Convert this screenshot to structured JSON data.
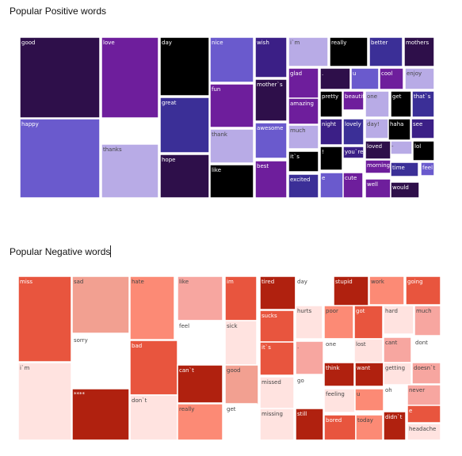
{
  "chart_data": [
    {
      "type": "treemap",
      "title": "Popular Positive words",
      "labels": [
        "good",
        "love",
        "day",
        "nice",
        "wish",
        "i`m",
        "really",
        "better",
        "mothers",
        "glad",
        ".",
        "u",
        "cool",
        "enjoy",
        "mother`s",
        "pretty",
        "beautiful",
        "one",
        "get",
        "that`s",
        "amazing",
        "night",
        "lovely",
        "day!",
        "haha",
        "see",
        "fun",
        "much",
        "great",
        "awesome",
        "-",
        "loved",
        "lol",
        "!",
        "you`re",
        "morning",
        "time",
        "feel",
        "thank",
        "best",
        "it`s",
        "happy",
        "thanks",
        "hope",
        "like",
        "excited",
        "e",
        "cute",
        "well",
        "would"
      ],
      "colors": [
        "#2e0f4a",
        "#6e1e9c",
        "#000000",
        "#6a5acd",
        "#3b1f86",
        "#b8abe6",
        "#000000",
        "#3b2f97",
        "#2e0f4a",
        "#6e1e9c",
        "#2e0f4a",
        "#6a5acd",
        "#6e1e9c",
        "#b8abe6",
        "#2e0f4a",
        "#000000",
        "#6e1e9c",
        "#b8abe6",
        "#000000",
        "#3b2f97",
        "#6e1e9c",
        "#3b1f86",
        "#3b2f97",
        "#b8abe6",
        "#000000",
        "#3b1f86",
        "#6e1e9c",
        "#b8abe6",
        "#3b2f97",
        "#6a5acd",
        "#b8abe6",
        "#2e0f4a",
        "#000000",
        "#000000",
        "#3b1f86",
        "#6e1e9c",
        "#3b2f97",
        "#6a5acd",
        "#b8abe6",
        "#6e1e9c",
        "#000000",
        "#6a5acd",
        "#b8abe6",
        "#2e0f4a",
        "#000000",
        "#3b2f97",
        "#6a5acd",
        "#6e1e9c",
        "#6e1e9c",
        "#2e0f4a"
      ]
    },
    {
      "type": "treemap",
      "title": "Popular Negative words",
      "labels": [
        "miss",
        "sad",
        "hate",
        "like",
        "im",
        "tired",
        "day",
        "stupid",
        "work",
        "going",
        "hurts",
        "poor",
        "got",
        "hard",
        "much",
        "sucks",
        "feel",
        "sick",
        "one",
        "lost",
        "cant",
        "dont",
        "it`s",
        ".",
        "sorry",
        "bad",
        "think",
        "want",
        "getting",
        "doesn`t",
        "can`t",
        "good",
        "go",
        "missed",
        "oh",
        "never",
        "i`m",
        "feeling",
        "u",
        "****",
        "don`t",
        "e",
        "really",
        "get",
        "missing",
        "still",
        "bored",
        "today",
        "didn`t",
        "headache"
      ],
      "colors": [
        "#e8553e",
        "#f2a091",
        "#fc8a75",
        "#f7a6a0",
        "#e8553e",
        "#b0210f",
        "#ffffff",
        "#b0210f",
        "#fc8a75",
        "#e8553e",
        "#ffe3e0",
        "#fc8a75",
        "#e8553e",
        "#ffe3e0",
        "#f7a6a0",
        "#e8553e",
        "#ffffff",
        "#ffe3e0",
        "#ffffff",
        "#ffe3e0",
        "#f7a6a0",
        "#ffffff",
        "#e8553e",
        "#f7a6a0",
        "#ffffff",
        "#e8553e",
        "#b0210f",
        "#b0210f",
        "#ffe3e0",
        "#f7a6a0",
        "#b0210f",
        "#f2a091",
        "#ffffff",
        "#ffe3e0",
        "#ffffff",
        "#f7a6a0",
        "#ffe3e0",
        "#ffe3e0",
        "#fc8a75",
        "#b0210f",
        "#ffe3e0",
        "#e8553e",
        "#fc8a75",
        "#ffffff",
        "#ffe3e0",
        "#b0210f",
        "#e8553e",
        "#fc8a75",
        "#b0210f",
        "#ffe3e0"
      ]
    }
  ]
}
